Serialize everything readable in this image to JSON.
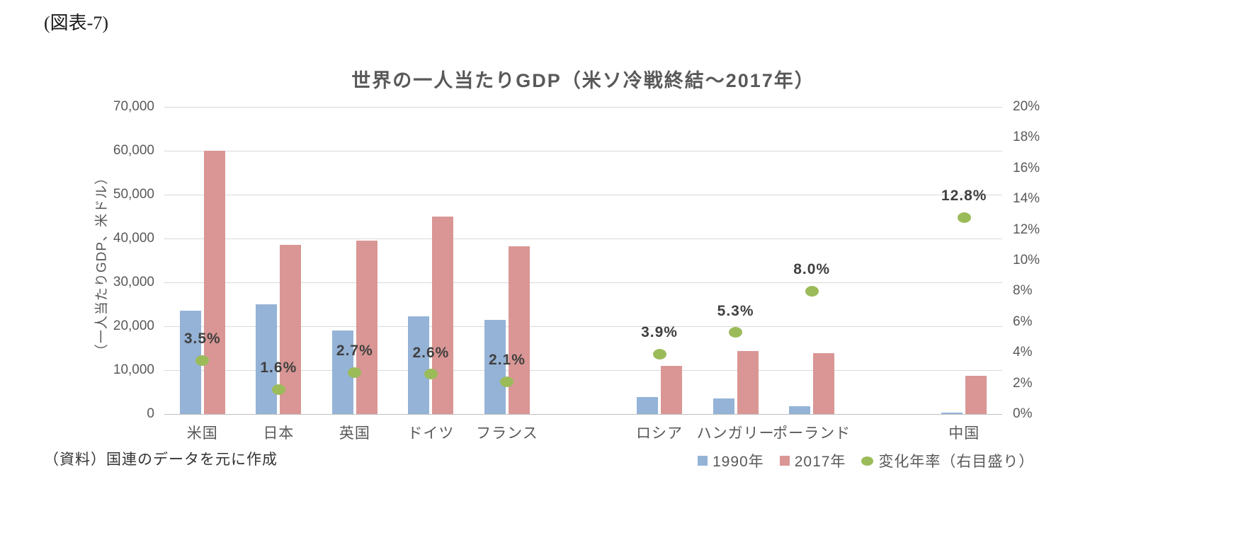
{
  "figure_label": "(図表-7)",
  "title": "世界の一人当たりGDP（米ソ冷戦終結～2017年）",
  "source_note": "（資料）国連のデータを元に作成",
  "left_axis": {
    "label": "（一人当たりGDP、米ドル）",
    "ticks": [
      "70,000",
      "60,000",
      "50,000",
      "40,000",
      "30,000",
      "20,000",
      "10,000",
      "0"
    ]
  },
  "right_axis": {
    "ticks": [
      "20%",
      "18%",
      "16%",
      "14%",
      "12%",
      "10%",
      "8%",
      "6%",
      "4%",
      "2%",
      "0%"
    ]
  },
  "legend": [
    {
      "label": "1990年",
      "marker": "square",
      "color": "#95B3D7"
    },
    {
      "label": "2017年",
      "marker": "square",
      "color": "#D99694"
    },
    {
      "label": "変化年率（右目盛り）",
      "marker": "circle",
      "color": "#9BBB59"
    }
  ],
  "colors": {
    "bar_1990": "#95B3D7",
    "bar_2017": "#D99694",
    "dot": "#9BBB59",
    "grid": "#D9D9D9",
    "baseline": "#BFBFBF",
    "axis_text": "#595959"
  },
  "chart_data": {
    "type": "bar+scatter",
    "title": "世界の一人当たりGDP（米ソ冷戦終結～2017年）",
    "ylabel_left": "（一人当たりGDP、米ドル）",
    "ylabel_right": "変化年率",
    "ylim_left": [
      0,
      70000
    ],
    "ylim_right": [
      0,
      20
    ],
    "grid": true,
    "legend_position": "bottom-right",
    "slots": 11,
    "series_names": [
      "1990年",
      "2017年",
      "変化年率（右目盛り）"
    ],
    "countries": [
      {
        "label": "米国",
        "slot": 0,
        "gdp_1990": 23500,
        "gdp_2017": 60000,
        "rate_pct": 3.5,
        "rate_label": "3.5%"
      },
      {
        "label": "日本",
        "slot": 1,
        "gdp_1990": 25000,
        "gdp_2017": 38500,
        "rate_pct": 1.6,
        "rate_label": "1.6%"
      },
      {
        "label": "英国",
        "slot": 2,
        "gdp_1990": 19000,
        "gdp_2017": 39500,
        "rate_pct": 2.7,
        "rate_label": "2.7%"
      },
      {
        "label": "ドイツ",
        "slot": 3,
        "gdp_1990": 22200,
        "gdp_2017": 45000,
        "rate_pct": 2.6,
        "rate_label": "2.6%"
      },
      {
        "label": "フランス",
        "slot": 4,
        "gdp_1990": 21500,
        "gdp_2017": 38300,
        "rate_pct": 2.1,
        "rate_label": "2.1%"
      },
      {
        "label": "ロシア",
        "slot": 6,
        "gdp_1990": 3900,
        "gdp_2017": 11000,
        "rate_pct": 3.9,
        "rate_label": "3.9%"
      },
      {
        "label": "ハンガリー",
        "slot": 7,
        "gdp_1990": 3600,
        "gdp_2017": 14400,
        "rate_pct": 5.3,
        "rate_label": "5.3%"
      },
      {
        "label": "ポーランド",
        "slot": 8,
        "gdp_1990": 1700,
        "gdp_2017": 13900,
        "rate_pct": 8.0,
        "rate_label": "8.0%"
      },
      {
        "label": "中国",
        "slot": 10,
        "gdp_1990": 300,
        "gdp_2017": 8700,
        "rate_pct": 12.8,
        "rate_label": "12.8%"
      }
    ]
  }
}
